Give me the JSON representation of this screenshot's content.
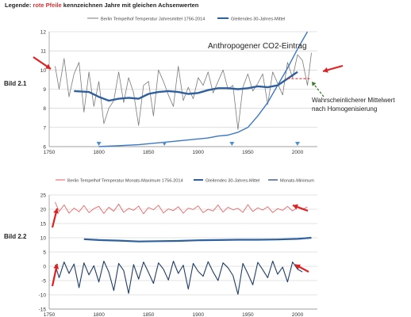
{
  "header": {
    "legend_prefix": "Legende: ",
    "legend_red": "rote Pfeile",
    "legend_suffix": " kennzeichnen Jahre mit gleichen Achsenwerten"
  },
  "labels": {
    "bild1": "Bild 2.1",
    "bild2": "Bild 2.2"
  },
  "colors": {
    "annual": "#7a7a7a",
    "mean": "#2e5f9e",
    "co2": "#3b78c4",
    "arrow_red": "#e02020",
    "arrow_green": "#3a7a2a",
    "max": "#e85555",
    "min": "#1f3d66",
    "homog": "#e02020"
  },
  "chart_data": [
    {
      "type": "line",
      "legend": [
        "Berlin Tempelhof Temperatur  Jahresmittel 1756-2014",
        "Gleitendes 30-Jahres-Mittel"
      ],
      "legend_placement": "top",
      "xlim": [
        1750,
        2020
      ],
      "ylim": [
        6,
        12
      ],
      "xticks": [
        "1750",
        "1800",
        "1850",
        "1900",
        "1950",
        "2000"
      ],
      "yticks": [
        "6",
        "7",
        "8",
        "9",
        "10",
        "11",
        "12"
      ],
      "annotations": [
        "Anthropogener CO2-Eintrag",
        "Wahrscheinlicherer  Mittelwert",
        "nach Homogenisierung"
      ],
      "blue_triangle_years": [
        1800,
        1866,
        1934,
        2000
      ],
      "series": [
        {
          "name": "Berlin Tempelhof Temperatur  Jahresmittel 1756-2014",
          "x": [
            1756,
            1760,
            1765,
            1770,
            1775,
            1780,
            1785,
            1790,
            1795,
            1800,
            1805,
            1810,
            1815,
            1820,
            1825,
            1830,
            1835,
            1840,
            1845,
            1850,
            1855,
            1860,
            1865,
            1870,
            1875,
            1880,
            1885,
            1890,
            1895,
            1900,
            1905,
            1910,
            1915,
            1920,
            1925,
            1930,
            1935,
            1940,
            1945,
            1950,
            1955,
            1960,
            1965,
            1970,
            1975,
            1980,
            1985,
            1990,
            1995,
            2000,
            2005,
            2010,
            2014
          ],
          "y": [
            10.2,
            9.0,
            10.6,
            8.6,
            9.8,
            10.4,
            7.8,
            9.9,
            8.1,
            9.4,
            7.2,
            8.0,
            8.4,
            9.9,
            8.3,
            9.6,
            8.8,
            7.1,
            9.2,
            9.4,
            7.6,
            10.0,
            9.4,
            8.7,
            8.1,
            10.2,
            8.4,
            9.1,
            8.5,
            9.6,
            9.2,
            9.9,
            8.8,
            9.4,
            10.0,
            9.0,
            9.2,
            6.9,
            9.1,
            9.8,
            8.9,
            9.3,
            9.8,
            8.2,
            9.9,
            9.3,
            8.7,
            10.4,
            9.6,
            10.8,
            10.5,
            9.2,
            10.9
          ]
        },
        {
          "name": "Gleitendes 30-Jahres-Mittel",
          "x": [
            1775,
            1790,
            1800,
            1810,
            1820,
            1830,
            1840,
            1850,
            1860,
            1870,
            1880,
            1890,
            1900,
            1910,
            1920,
            1930,
            1940,
            1950,
            1960,
            1970,
            1980,
            1990,
            2000
          ],
          "y": [
            8.9,
            8.85,
            8.6,
            8.4,
            8.5,
            8.55,
            8.5,
            8.75,
            8.85,
            8.9,
            8.85,
            8.75,
            8.8,
            8.95,
            9.05,
            9.05,
            9.0,
            9.05,
            9.15,
            9.1,
            9.2,
            9.55,
            9.9
          ]
        },
        {
          "name": "Anthropogener CO2-Eintrag",
          "x": [
            1800,
            1820,
            1840,
            1860,
            1880,
            1900,
            1910,
            1920,
            1930,
            1940,
            1950,
            1960,
            1970,
            1980,
            1990,
            2000,
            2010
          ],
          "y": [
            6.0,
            6.05,
            6.1,
            6.2,
            6.3,
            6.4,
            6.45,
            6.55,
            6.6,
            6.75,
            7.0,
            7.6,
            8.3,
            9.2,
            10.1,
            11.1,
            12.0
          ]
        },
        {
          "name": "Homogenisierung",
          "x": [
            1990,
            2014
          ],
          "y": [
            9.55,
            9.55
          ]
        }
      ]
    },
    {
      "type": "line",
      "legend": [
        "Berlin Tempelhof Temperatur Monats-Maximum 1756-2014",
        "Gleitendes 30-Jahres-Mittel",
        "Monats-Minimum"
      ],
      "legend_placement": "top",
      "xlim": [
        1750,
        2020
      ],
      "ylim": [
        -15,
        25
      ],
      "xticks": [
        "1750",
        "1800",
        "1850",
        "1900",
        "1950",
        "2000"
      ],
      "yticks": [
        "-15",
        "-10",
        "-5",
        "0",
        "5",
        "10",
        "15",
        "20",
        "25"
      ],
      "series": [
        {
          "name": "Berlin Tempelhof Temperatur Monats-Maximum 1756-2014",
          "x": [
            1756,
            1760,
            1765,
            1770,
            1775,
            1780,
            1785,
            1790,
            1795,
            1800,
            1805,
            1810,
            1815,
            1820,
            1825,
            1830,
            1835,
            1840,
            1845,
            1850,
            1855,
            1860,
            1865,
            1870,
            1875,
            1880,
            1885,
            1890,
            1895,
            1900,
            1905,
            1910,
            1915,
            1920,
            1925,
            1930,
            1935,
            1940,
            1945,
            1950,
            1955,
            1960,
            1965,
            1970,
            1975,
            1980,
            1985,
            1990,
            1995,
            2000,
            2005,
            2010
          ],
          "y": [
            22.5,
            19.2,
            21.5,
            18.6,
            20.4,
            19.1,
            21.3,
            18.8,
            20.2,
            21.0,
            18.5,
            20.7,
            19.3,
            21.8,
            18.9,
            20.3,
            19.6,
            21.1,
            18.4,
            20.6,
            19.8,
            21.4,
            18.7,
            20.1,
            19.5,
            20.9,
            18.6,
            20.4,
            19.9,
            21.2,
            18.8,
            20.0,
            19.4,
            21.5,
            19.0,
            20.7,
            19.8,
            20.3,
            18.9,
            21.6,
            19.2,
            20.5,
            19.7,
            20.9,
            18.8,
            20.2,
            19.6,
            21.0,
            19.4,
            20.6,
            19.9,
            20.8
          ]
        },
        {
          "name": "Gleitendes 30-Jahres-Mittel",
          "x": [
            1785,
            1800,
            1820,
            1840,
            1860,
            1880,
            1900,
            1920,
            1940,
            1960,
            1980,
            2000,
            2014
          ],
          "y": [
            9.5,
            9.2,
            9.0,
            8.7,
            8.8,
            8.9,
            9.1,
            9.2,
            9.3,
            9.3,
            9.4,
            9.6,
            10.0
          ]
        },
        {
          "name": "Monats-Minimum",
          "x": [
            1756,
            1760,
            1765,
            1770,
            1775,
            1780,
            1785,
            1790,
            1795,
            1800,
            1805,
            1810,
            1815,
            1820,
            1825,
            1830,
            1835,
            1840,
            1845,
            1850,
            1855,
            1860,
            1865,
            1870,
            1875,
            1880,
            1885,
            1890,
            1895,
            1900,
            1905,
            1910,
            1915,
            1920,
            1925,
            1930,
            1935,
            1940,
            1945,
            1950,
            1955,
            1960,
            1965,
            1970,
            1975,
            1980,
            1985,
            1990,
            1995,
            2000,
            2005
          ],
          "y": [
            0.5,
            -4.0,
            1.5,
            -2.5,
            0.8,
            -7.5,
            1.2,
            -3.0,
            0.2,
            -5.5,
            1.8,
            -2.0,
            -8.5,
            1.0,
            -1.5,
            -9.5,
            0.6,
            -4.5,
            1.5,
            -2.2,
            -6.0,
            1.2,
            -1.0,
            -4.8,
            1.8,
            -2.5,
            0.4,
            -8.0,
            1.0,
            -1.8,
            -3.5,
            1.6,
            -2.0,
            -5.0,
            1.2,
            -0.5,
            -3.2,
            -9.8,
            1.0,
            -2.6,
            -6.5,
            1.4,
            -1.2,
            -4.0,
            1.8,
            -2.8,
            -0.3,
            -5.5,
            1.5,
            -1.0,
            -2.0
          ]
        }
      ]
    }
  ]
}
